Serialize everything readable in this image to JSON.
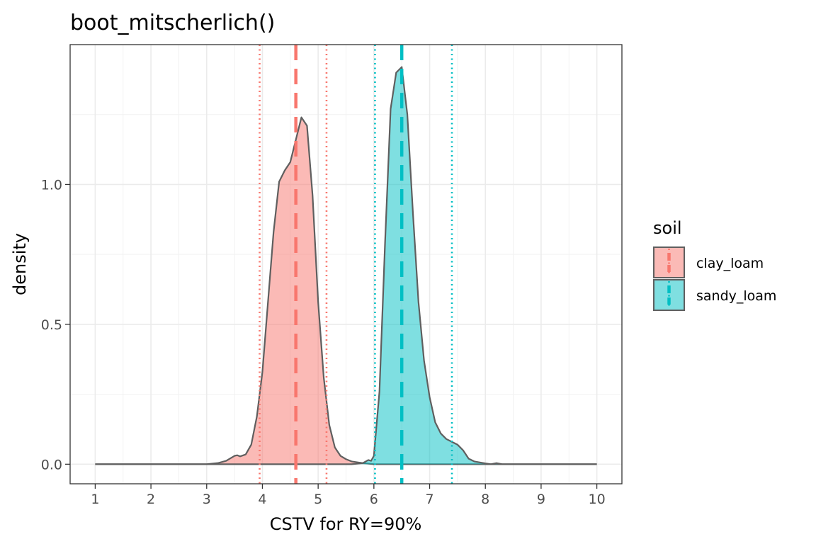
{
  "chart_data": {
    "type": "area",
    "title": "boot_mitscherlich()",
    "xlabel": "CSTV for RY=90%",
    "ylabel": "density",
    "xlim": [
      0.55,
      10.45
    ],
    "ylim": [
      -0.07,
      1.5
    ],
    "x_ticks": [
      1,
      2,
      3,
      4,
      5,
      6,
      7,
      8,
      9,
      10
    ],
    "y_ticks": [
      0.0,
      0.5,
      1.0
    ],
    "y_tick_labels": [
      "0.0",
      "0.5",
      "1.0"
    ],
    "grid": true,
    "legend": {
      "title": "soil",
      "position": "right"
    },
    "series": [
      {
        "name": "clay_loam",
        "fill": "#f8766d",
        "median": 4.6,
        "ci": [
          3.95,
          5.15
        ],
        "points": [
          [
            1.0,
            0.0
          ],
          [
            3.0,
            0.0
          ],
          [
            3.2,
            0.004
          ],
          [
            3.35,
            0.012
          ],
          [
            3.5,
            0.03
          ],
          [
            3.55,
            0.032
          ],
          [
            3.6,
            0.028
          ],
          [
            3.7,
            0.035
          ],
          [
            3.8,
            0.07
          ],
          [
            3.9,
            0.17
          ],
          [
            4.0,
            0.33
          ],
          [
            4.1,
            0.58
          ],
          [
            4.2,
            0.83
          ],
          [
            4.3,
            1.01
          ],
          [
            4.4,
            1.05
          ],
          [
            4.5,
            1.08
          ],
          [
            4.6,
            1.16
          ],
          [
            4.7,
            1.24
          ],
          [
            4.8,
            1.21
          ],
          [
            4.9,
            0.96
          ],
          [
            5.0,
            0.58
          ],
          [
            5.1,
            0.31
          ],
          [
            5.2,
            0.14
          ],
          [
            5.3,
            0.06
          ],
          [
            5.4,
            0.03
          ],
          [
            5.5,
            0.018
          ],
          [
            5.6,
            0.01
          ],
          [
            5.8,
            0.004
          ],
          [
            6.0,
            0.0
          ],
          [
            10.0,
            0.0
          ]
        ]
      },
      {
        "name": "sandy_loam",
        "fill": "#00bfc4",
        "median": 6.5,
        "ci": [
          6.02,
          7.4
        ],
        "points": [
          [
            1.0,
            0.0
          ],
          [
            5.6,
            0.0
          ],
          [
            5.8,
            0.004
          ],
          [
            5.9,
            0.015
          ],
          [
            5.95,
            0.012
          ],
          [
            6.0,
            0.03
          ],
          [
            6.1,
            0.26
          ],
          [
            6.2,
            0.79
          ],
          [
            6.3,
            1.27
          ],
          [
            6.4,
            1.4
          ],
          [
            6.5,
            1.42
          ],
          [
            6.6,
            1.25
          ],
          [
            6.7,
            0.9
          ],
          [
            6.8,
            0.58
          ],
          [
            6.9,
            0.37
          ],
          [
            7.0,
            0.24
          ],
          [
            7.1,
            0.15
          ],
          [
            7.2,
            0.11
          ],
          [
            7.3,
            0.09
          ],
          [
            7.5,
            0.07
          ],
          [
            7.6,
            0.05
          ],
          [
            7.7,
            0.02
          ],
          [
            7.8,
            0.01
          ],
          [
            8.0,
            0.003
          ],
          [
            8.1,
            0.0
          ],
          [
            8.2,
            0.004
          ],
          [
            8.3,
            0.0
          ],
          [
            10.0,
            0.0
          ]
        ]
      }
    ]
  }
}
